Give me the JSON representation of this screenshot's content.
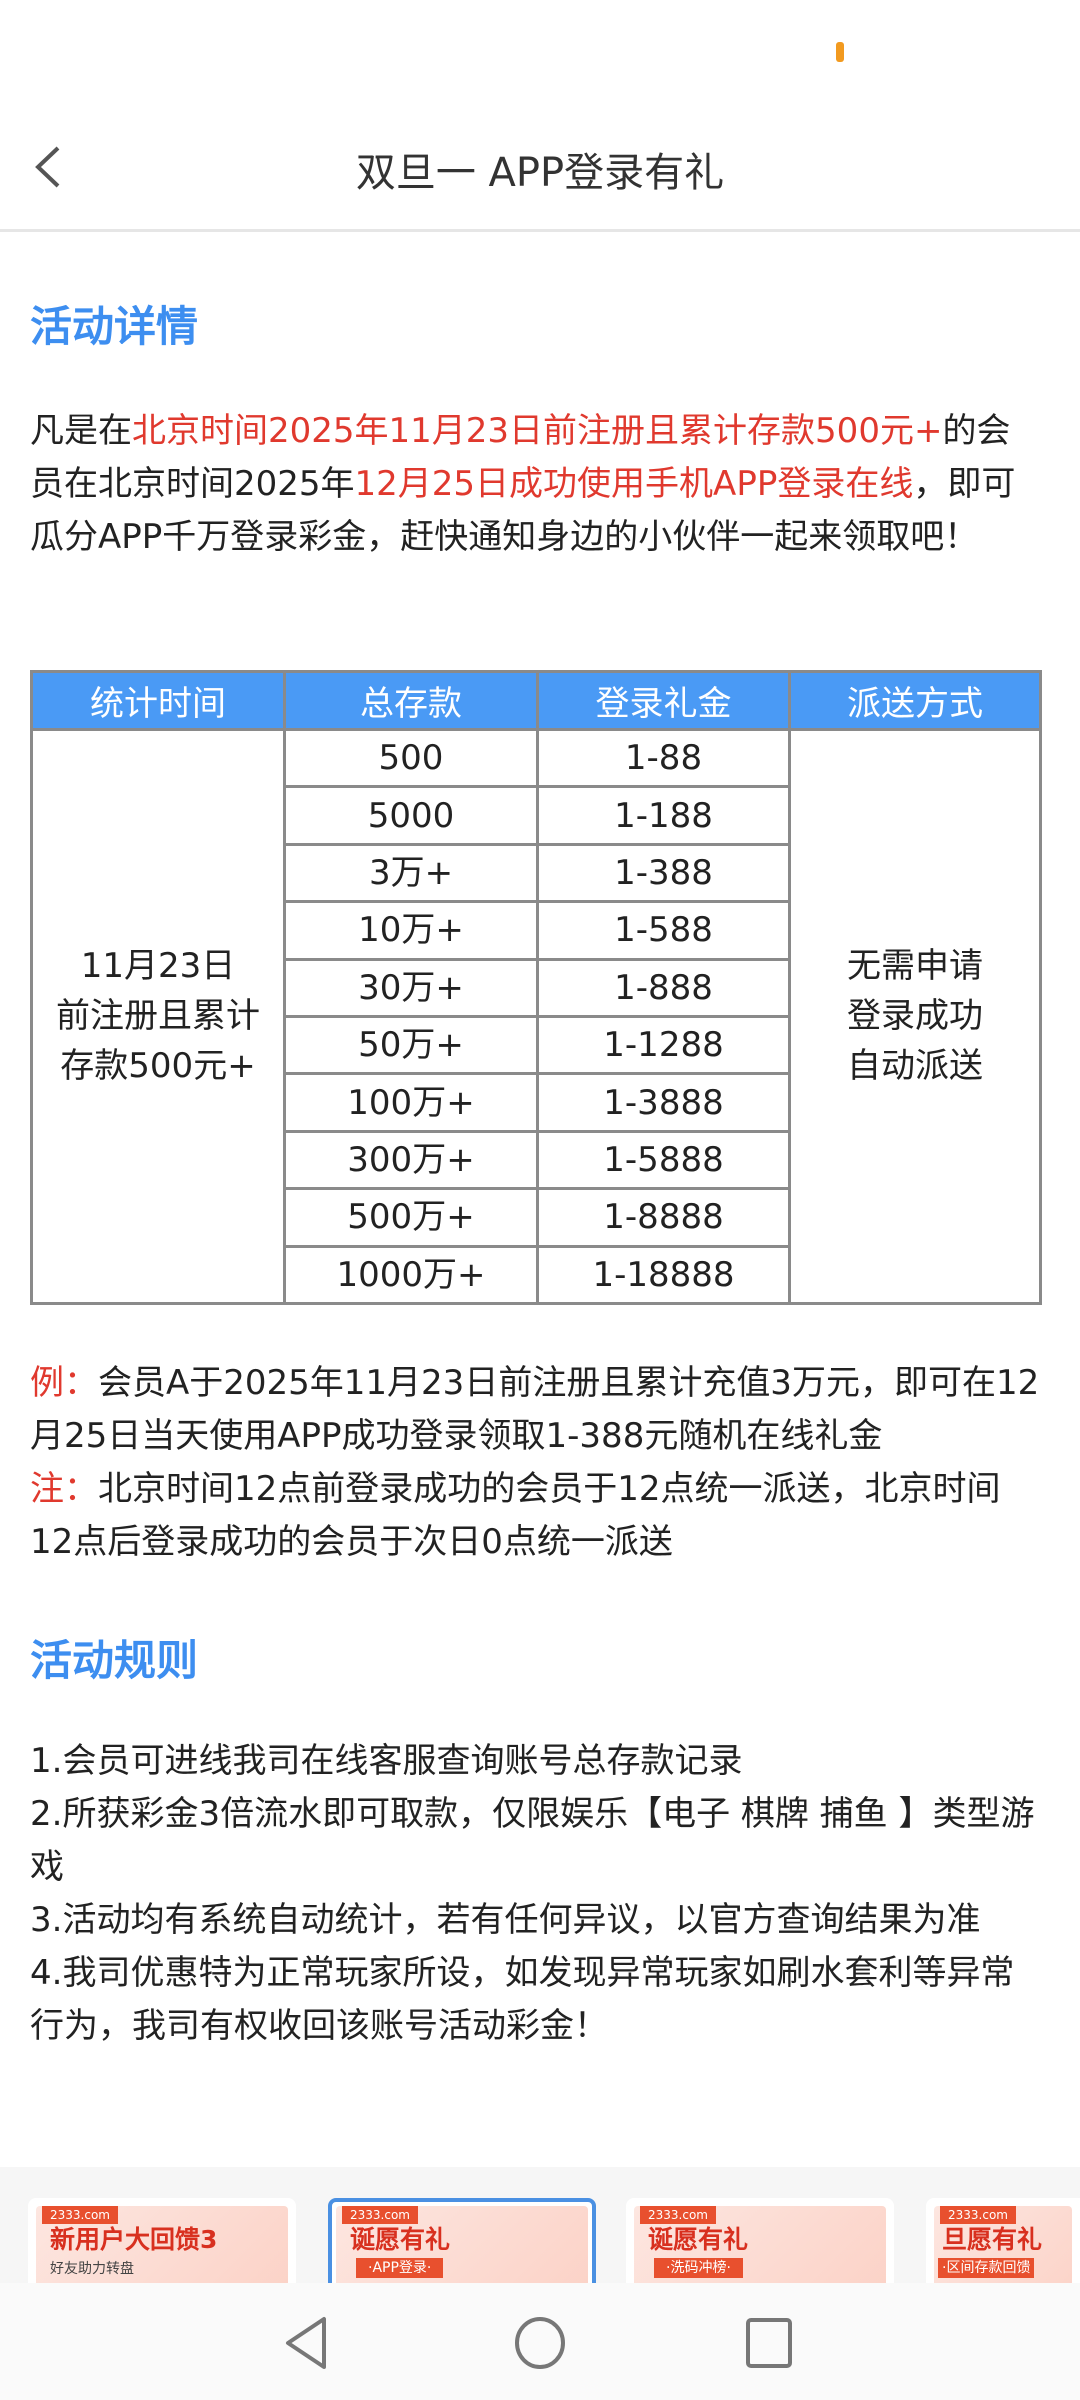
{
  "header": {
    "title": "双旦一 APP登录有礼",
    "back_icon": "chevron-left-icon"
  },
  "section1": {
    "title": "活动详情"
  },
  "intro": {
    "p1": "凡是在",
    "r1": "北京时间2025年11月23日前注册且累计存款500元+",
    "p2": "的会员在北京时间2025年",
    "r2": "12月25日成功使用手机APP登录在线",
    "p3": "，即可瓜分APP千万登录彩金，赶快通知身边的小伙伴一起来领取吧！"
  },
  "table": {
    "headers": [
      "统计时间",
      "总存款",
      "登录礼金",
      "派送方式"
    ],
    "time_cell": [
      "11月23日",
      "前注册且累计",
      "存款500元+"
    ],
    "method_cell": [
      "无需申请",
      "登录成功",
      "自动派送"
    ],
    "rows": [
      [
        "500",
        "1-88"
      ],
      [
        "5000",
        "1-188"
      ],
      [
        "3万+",
        "1-388"
      ],
      [
        "10万+",
        "1-588"
      ],
      [
        "30万+",
        "1-888"
      ],
      [
        "50万+",
        "1-1288"
      ],
      [
        "100万+",
        "1-3888"
      ],
      [
        "300万+",
        "1-5888"
      ],
      [
        "500万+",
        "1-8888"
      ],
      [
        "1000万+",
        "1-18888"
      ]
    ]
  },
  "example": {
    "label": "例：",
    "text": "会员A于2025年11月23日前注册且累计充值3万元，即可在12月25日当天使用APP成功登录领取1-388元随机在线礼金"
  },
  "note": {
    "label": "注：",
    "text": "北京时间12点前登录成功的会员于12点统一派送，北京时间12点后登录成功的会员于次日0点统一派送"
  },
  "section2": {
    "title": "活动规则"
  },
  "rules": [
    "1.会员可进线我司在线客服查询账号总存款记录",
    "2.所获彩金3倍流水即可取款，仅限娱乐【电子 棋牌 捕鱼 】类型游戏",
    "3.活动均有系统自动统计，若有任何异议，以官方查询结果为准",
    "4.我司优惠特为正常玩家所设，如发现异常玩家如刷水套利等异常行为，我司有权收回该账号活动彩金！"
  ],
  "banners": [
    {
      "brand": "2333.com",
      "title": "新用户大回馈3",
      "sub": "好友助力转盘"
    },
    {
      "brand": "2333.com",
      "title": "诞愿有礼",
      "sub": "·APP登录·"
    },
    {
      "brand": "2333.com",
      "title": "诞愿有礼",
      "sub": "·洗码冲榜·"
    },
    {
      "brand": "2333.com",
      "title": "旦愿有礼",
      "sub": "·区间存款回馈"
    }
  ],
  "colors": {
    "accent": "#3d8ef0",
    "highlight": "#e0392e",
    "table_header": "#4a9af5"
  }
}
